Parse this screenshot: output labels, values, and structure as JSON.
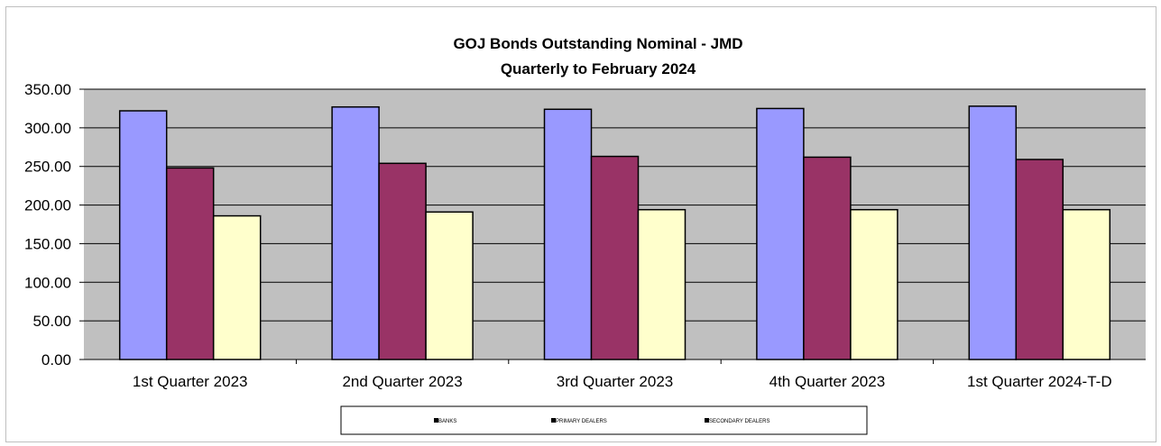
{
  "chart_data": {
    "type": "bar",
    "title": "GOJ Bonds Outstanding Nominal - JMD",
    "subtitle": "Quarterly to February 2024",
    "categories": [
      "1st Quarter 2023",
      "2nd Quarter 2023",
      "3rd Quarter 2023",
      "4th Quarter 2023",
      "1st Quarter 2024-T-D"
    ],
    "series": [
      {
        "name": "BANKS",
        "color": "#9999ff",
        "values": [
          322,
          327,
          324,
          325,
          328
        ]
      },
      {
        "name": "PRIMARY DEALERS",
        "color": "#993366",
        "values": [
          248,
          254,
          263,
          262,
          259
        ]
      },
      {
        "name": "SECONDARY DEALERS",
        "color": "#ffffcc",
        "values": [
          186,
          191,
          194,
          194,
          194
        ]
      }
    ],
    "ylim": [
      0,
      350
    ],
    "yticks": [
      "0.00",
      "50.00",
      "100.00",
      "150.00",
      "200.00",
      "250.00",
      "300.00",
      "350.00"
    ],
    "xlabel": "",
    "ylabel": "",
    "grid": true,
    "plot_background": "#c0c0c0",
    "legend_position": "bottom"
  }
}
